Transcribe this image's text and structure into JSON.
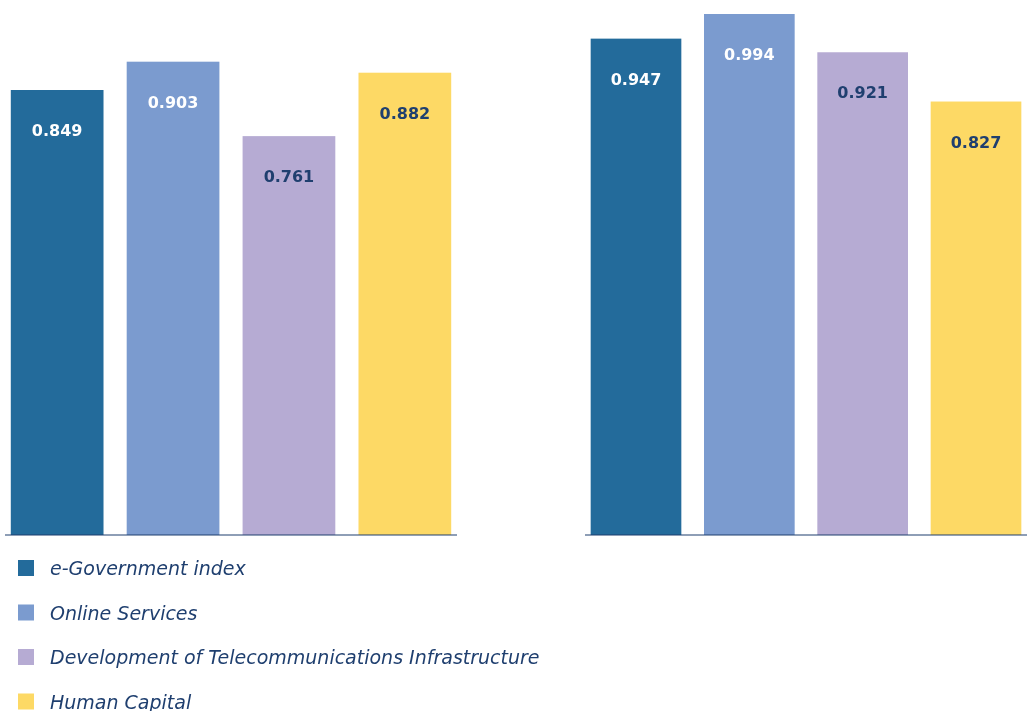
{
  "chart_data": [
    {
      "type": "bar",
      "categories": [
        null
      ],
      "data_labels": true,
      "legend": "bottom",
      "series": [
        {
          "name": "e-Government index",
          "color": "#236b9b",
          "values": [
            0.849
          ]
        },
        {
          "name": "Online Services",
          "color": "#7b9bcf",
          "values": [
            0.903
          ]
        },
        {
          "name": "Development of Telecommunications Infrastructure",
          "color": "#b6abd3",
          "values": [
            0.761
          ]
        },
        {
          "name": "Human Capital",
          "color": "#fdd965",
          "values": [
            0.882
          ]
        }
      ]
    },
    {
      "type": "bar",
      "categories": [
        null
      ],
      "data_labels": true,
      "series": [
        {
          "color": "#236b9b",
          "values": [
            0.947
          ]
        },
        {
          "color": "#7b9bcf",
          "values": [
            0.994
          ]
        },
        {
          "color": "#b6abd3",
          "values": [
            0.921
          ]
        },
        {
          "color": "#fdd965",
          "values": [
            0.827
          ]
        }
      ]
    }
  ]
}
